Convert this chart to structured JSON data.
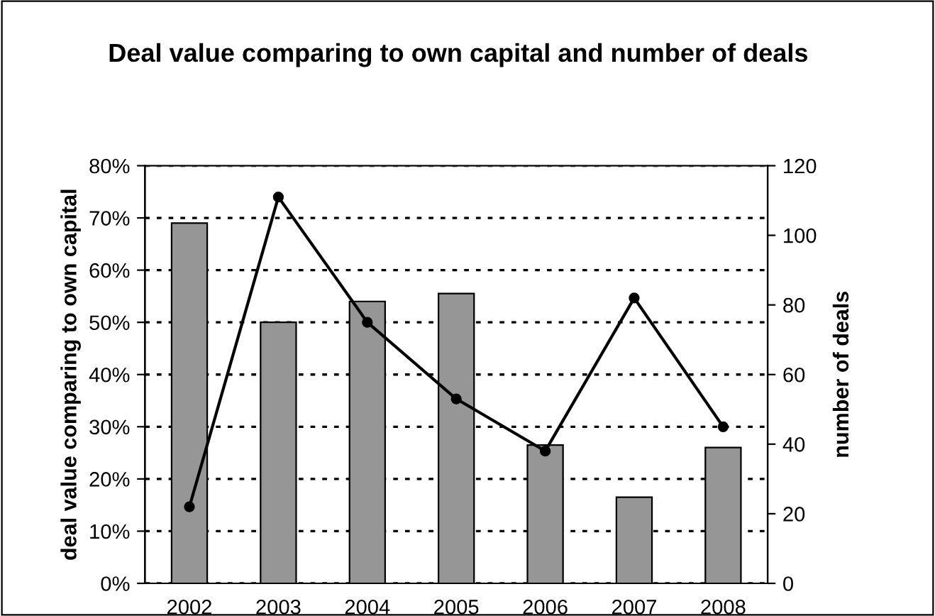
{
  "chart_data": {
    "type": "bar",
    "title": "Deal value comparing to own capital and number of deals",
    "categories": [
      "2002",
      "2003",
      "2004",
      "2005",
      "2006",
      "2007",
      "2008"
    ],
    "ylabel": "deal value comparing to own capital",
    "y2label": "number of deals",
    "series": [
      {
        "color": "#969696",
        "values": [
          69,
          50,
          54,
          55.5,
          26.5,
          16.5,
          26
        ]
      },
      {
        "type": "line",
        "axis": "y2",
        "color": "#000000",
        "marker": "circle",
        "line_style": "solid",
        "values": [
          22,
          111,
          75,
          53,
          38,
          82,
          45
        ]
      }
    ],
    "ylim": [
      0,
      80
    ],
    "yticks": [
      {
        "value": 0,
        "label": "0%"
      },
      {
        "value": 10,
        "label": "10%"
      },
      {
        "value": 20,
        "label": "20%"
      },
      {
        "value": 30,
        "label": "30%"
      },
      {
        "value": 40,
        "label": "40%"
      },
      {
        "value": 50,
        "label": "50%"
      },
      {
        "value": 60,
        "label": "60%"
      },
      {
        "value": 70,
        "label": "70%"
      },
      {
        "value": 80,
        "label": "80%"
      }
    ],
    "y2lim": [
      0,
      120
    ],
    "y2ticks": [
      0,
      20,
      40,
      60,
      80,
      100,
      120
    ],
    "grid": "y"
  }
}
